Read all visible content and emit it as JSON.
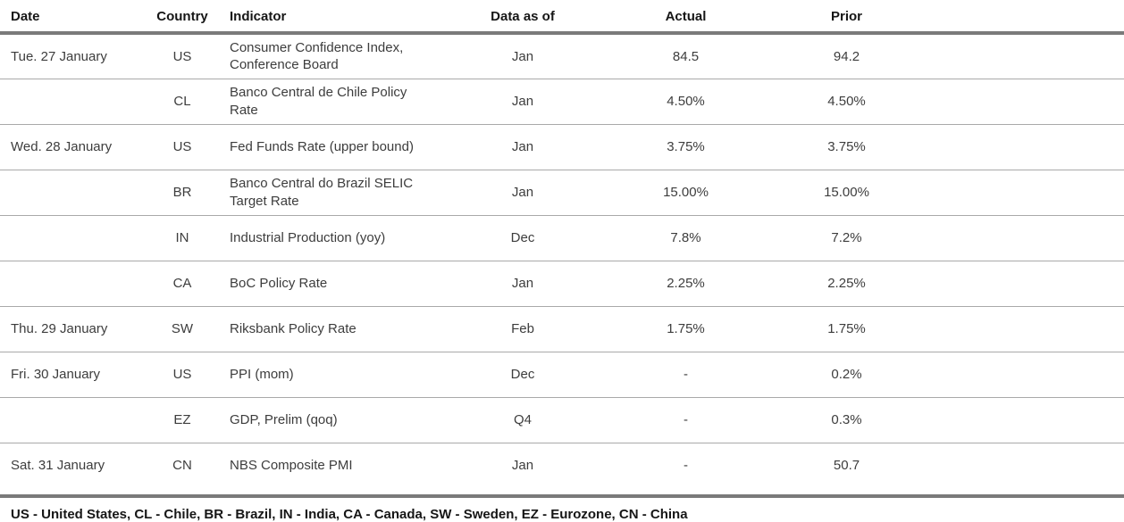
{
  "table": {
    "columns": {
      "date": "Date",
      "country": "Country",
      "indicator": "Indicator",
      "data_as_of": "Data as of",
      "actual": "Actual",
      "prior": "Prior"
    },
    "rows": [
      {
        "date": "Tue. 27 January",
        "country": "US",
        "indicator": "Consumer Confidence Index, Conference Board",
        "data_as_of": "Jan",
        "actual": "84.5",
        "prior": "94.2"
      },
      {
        "date": "",
        "country": "CL",
        "indicator": "Banco Central de Chile Policy Rate",
        "data_as_of": "Jan",
        "actual": "4.50%",
        "prior": "4.50%"
      },
      {
        "date": "Wed. 28 January",
        "country": "US",
        "indicator": "Fed Funds Rate (upper bound)",
        "data_as_of": "Jan",
        "actual": "3.75%",
        "prior": "3.75%"
      },
      {
        "date": "",
        "country": "BR",
        "indicator": "Banco Central do Brazil SELIC Target Rate",
        "data_as_of": "Jan",
        "actual": "15.00%",
        "prior": "15.00%"
      },
      {
        "date": "",
        "country": "IN",
        "indicator": "Industrial Production (yoy)",
        "data_as_of": "Dec",
        "actual": "7.8%",
        "prior": "7.2%"
      },
      {
        "date": "",
        "country": "CA",
        "indicator": "BoC Policy Rate",
        "data_as_of": "Jan",
        "actual": "2.25%",
        "prior": "2.25%"
      },
      {
        "date": "Thu. 29 January",
        "country": "SW",
        "indicator": "Riksbank Policy Rate",
        "data_as_of": "Feb",
        "actual": "1.75%",
        "prior": "1.75%"
      },
      {
        "date": "Fri. 30 January",
        "country": "US",
        "indicator": "PPI (mom)",
        "data_as_of": "Dec",
        "actual": "-",
        "prior": "0.2%"
      },
      {
        "date": "",
        "country": "EZ",
        "indicator": "GDP, Prelim (qoq)",
        "data_as_of": "Q4",
        "actual": "-",
        "prior": "0.3%"
      },
      {
        "date": "Sat. 31 January",
        "country": "CN",
        "indicator": "NBS Composite PMI",
        "data_as_of": "Jan",
        "actual": "-",
        "prior": "50.7"
      }
    ]
  },
  "footer": {
    "legend": "US - United States, CL - Chile, BR - Brazil, IN - India, CA - Canada, SW - Sweden, EZ - Eurozone, CN - China"
  },
  "colors": {
    "rule_heavy": "#7a7a7a",
    "rule_light": "#a9a9a9",
    "header_text": "#161616",
    "body_text": "#3d3d3d"
  }
}
